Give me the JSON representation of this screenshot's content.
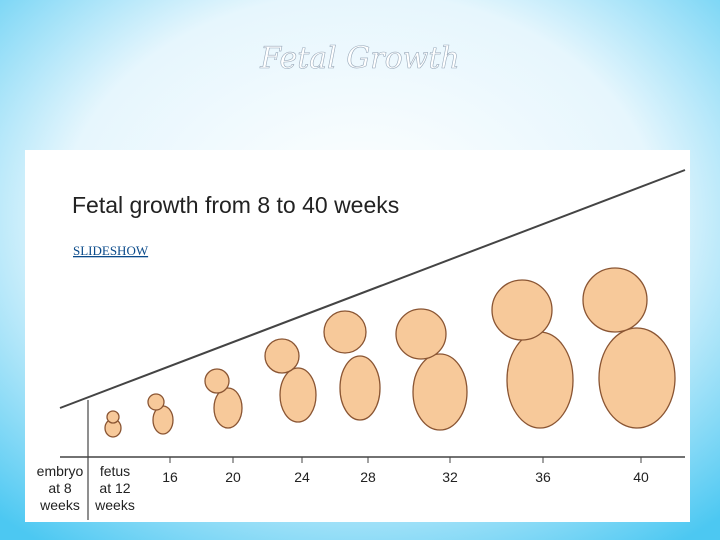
{
  "slide": {
    "title": "Fetal Growth"
  },
  "figure": {
    "title": "Fetal growth from 8 to 40 weeks",
    "link": "SLIDESHOW",
    "labels": [
      [
        "embryo",
        "at 8",
        "weeks"
      ],
      [
        "fetus",
        "at 12",
        "weeks"
      ],
      "16",
      "20",
      "24",
      "28",
      "32",
      "36",
      "40"
    ]
  }
}
